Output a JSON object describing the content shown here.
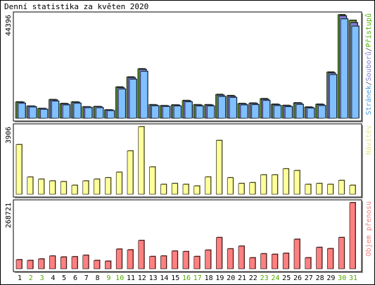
{
  "chart_data": {
    "type": "bar",
    "title": "Denní statistika za květen 2020",
    "categories": [
      "1",
      "2",
      "3",
      "4",
      "5",
      "6",
      "7",
      "8",
      "9",
      "10",
      "11",
      "12",
      "13",
      "14",
      "15",
      "16",
      "17",
      "18",
      "19",
      "20",
      "21",
      "22",
      "23",
      "24",
      "25",
      "26",
      "27",
      "28",
      "29",
      "30",
      "31"
    ],
    "weekend_days": [
      "2",
      "3",
      "9",
      "10",
      "16",
      "17",
      "23",
      "24",
      "30",
      "31"
    ],
    "panels": [
      {
        "id": "pages",
        "ymax": 44396,
        "ymax_label": "44396",
        "legend": [
          {
            "text": "Stránek",
            "color": "#4a9cdf"
          },
          {
            "text": "/",
            "color": "#555555"
          },
          {
            "text": "Souborů",
            "color": "#7f7fd0"
          },
          {
            "text": "/",
            "color": "#555555"
          },
          {
            "text": "Přístupů",
            "color": "#4db300"
          }
        ],
        "series": [
          {
            "name": "Přístupů",
            "color": "#669933",
            "values": [
              7000,
              5200,
              4200,
              8000,
              6300,
              7000,
              4900,
              5000,
              3600,
              13400,
              17700,
              21200,
              5800,
              5400,
              5700,
              7600,
              5800,
              5800,
              10200,
              9700,
              6300,
              6500,
              8400,
              6000,
              5500,
              6600,
              4800,
              6000,
              19800,
              44400,
              42000
            ]
          },
          {
            "name": "Souborů",
            "color": "#7f7fd0",
            "values": [
              6800,
              5100,
              4100,
              7800,
              6100,
              6800,
              4800,
              4900,
              3500,
              13100,
              17400,
              20900,
              5600,
              5300,
              5600,
              7400,
              5600,
              5600,
              9900,
              9400,
              6100,
              6300,
              8100,
              5800,
              5300,
              6400,
              4600,
              5800,
              19400,
              43900,
              41000
            ]
          },
          {
            "name": "Stránek",
            "color": "#80c0ff",
            "values": [
              6400,
              4800,
              3800,
              7300,
              5700,
              6400,
              4500,
              4500,
              3200,
              12500,
              16700,
              20100,
              5300,
              5000,
              5200,
              7000,
              5200,
              5200,
              9300,
              8900,
              5700,
              5800,
              7600,
              5400,
              4900,
              5900,
              4300,
              5400,
              18700,
              42600,
              39500
            ]
          }
        ]
      },
      {
        "id": "visits",
        "ymax": 3906,
        "ymax_label": "3906",
        "legend": [
          {
            "text": "Návštěv",
            "color": "#e6e68a"
          }
        ],
        "series": [
          {
            "name": "Návštěv",
            "color": "#ffff99",
            "values": [
              2870,
              990,
              870,
              770,
              730,
              520,
              770,
              870,
              950,
              1270,
              2510,
              3906,
              1580,
              570,
              620,
              570,
              480,
              1000,
              3110,
              950,
              620,
              670,
              1120,
              1120,
              1470,
              1370,
              570,
              620,
              570,
              800,
              520
            ]
          }
        ]
      },
      {
        "id": "traffic",
        "ymax": 268721,
        "ymax_label": "268721",
        "legend": [
          {
            "text": "Objem přenosu",
            "color": "#f08080"
          }
        ],
        "series": [
          {
            "name": "Objem přenosu",
            "color": "#ff8080",
            "values": [
              37000,
              34000,
              40000,
              52000,
              48000,
              49000,
              55000,
              34000,
              31000,
              80000,
              77000,
              115000,
              50000,
              52000,
              72000,
              70000,
              50000,
              76000,
              127000,
              81000,
              92000,
              45000,
              61000,
              59000,
              63000,
              120000,
              45000,
              87000,
              82000,
              127000,
              268721
            ]
          }
        ]
      }
    ]
  }
}
